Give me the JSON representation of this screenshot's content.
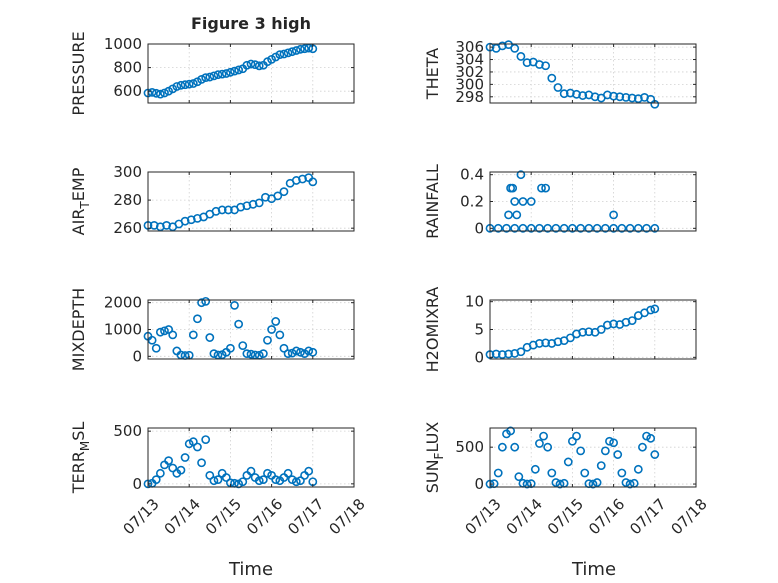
{
  "figure_title": "Figure 3 high",
  "xlabel": "Time",
  "colors": {
    "marker": "#0072BD",
    "axis": "#262626",
    "grid": "#d0d0d0"
  },
  "chart_data": [
    {
      "type": "scatter",
      "title": "Figure 3 high",
      "ylabel": "PRESSURE",
      "ylabel_parts": {
        "pre": "PRESSURE",
        "sub": "",
        "post": ""
      },
      "xlim": [
        "07/13",
        "07/18"
      ],
      "xticks": [
        "07/13",
        "07/14",
        "07/15",
        "07/16",
        "07/17",
        "07/18"
      ],
      "show_xtick_labels": false,
      "ylim": [
        500,
        1000
      ],
      "yticks": [
        600,
        800,
        1000
      ],
      "grid": true,
      "x": [
        0.0,
        0.1,
        0.2,
        0.3,
        0.4,
        0.5,
        0.6,
        0.7,
        0.8,
        0.9,
        1.0,
        1.1,
        1.2,
        1.3,
        1.4,
        1.5,
        1.6,
        1.7,
        1.8,
        1.9,
        2.0,
        2.1,
        2.2,
        2.3,
        2.4,
        2.5,
        2.6,
        2.7,
        2.8,
        2.9,
        3.0,
        3.1,
        3.2,
        3.3,
        3.4,
        3.5,
        3.6,
        3.7,
        3.8,
        3.9,
        4.0
      ],
      "y": [
        585,
        590,
        582,
        575,
        585,
        600,
        620,
        640,
        650,
        655,
        660,
        665,
        680,
        700,
        715,
        720,
        730,
        740,
        745,
        750,
        760,
        770,
        780,
        790,
        820,
        830,
        825,
        815,
        820,
        850,
        870,
        890,
        910,
        915,
        925,
        935,
        945,
        955,
        960,
        965,
        960
      ]
    },
    {
      "type": "scatter",
      "title": "",
      "ylabel": "THETA",
      "ylabel_parts": {
        "pre": "THETA",
        "sub": "",
        "post": ""
      },
      "xlim": [
        "07/13",
        "07/18"
      ],
      "xticks": [
        "07/13",
        "07/14",
        "07/15",
        "07/16",
        "07/17",
        "07/18"
      ],
      "show_xtick_labels": false,
      "ylim": [
        297,
        306.5
      ],
      "yticks": [
        298,
        300,
        302,
        304,
        306
      ],
      "grid": true,
      "x": [
        0.0,
        0.15,
        0.3,
        0.45,
        0.6,
        0.75,
        0.9,
        1.05,
        1.2,
        1.35,
        1.5,
        1.65,
        1.8,
        1.95,
        2.1,
        2.25,
        2.4,
        2.55,
        2.7,
        2.85,
        3.0,
        3.15,
        3.3,
        3.45,
        3.6,
        3.75,
        3.9,
        4.0
      ],
      "y": [
        306,
        305.8,
        306.2,
        306.4,
        305.8,
        304.5,
        303.5,
        303.6,
        303.2,
        303.0,
        301.0,
        299.5,
        298.5,
        298.6,
        298.4,
        298.2,
        298.3,
        298.0,
        297.8,
        298.3,
        298.1,
        298.0,
        297.9,
        297.8,
        297.7,
        297.9,
        297.6,
        296.8
      ]
    },
    {
      "type": "scatter",
      "title": "",
      "ylabel": "AIR_TEMP",
      "ylabel_parts": {
        "pre": "AIR",
        "sub": "T",
        "post": "EMP"
      },
      "xlim": [
        "07/13",
        "07/18"
      ],
      "xticks": [
        "07/13",
        "07/14",
        "07/15",
        "07/16",
        "07/17",
        "07/18"
      ],
      "show_xtick_labels": false,
      "ylim": [
        258,
        300
      ],
      "yticks": [
        260,
        280,
        300
      ],
      "grid": true,
      "x": [
        0.0,
        0.15,
        0.3,
        0.45,
        0.6,
        0.75,
        0.9,
        1.05,
        1.2,
        1.35,
        1.5,
        1.65,
        1.8,
        1.95,
        2.1,
        2.25,
        2.4,
        2.55,
        2.7,
        2.85,
        3.0,
        3.15,
        3.3,
        3.45,
        3.6,
        3.75,
        3.9,
        4.0
      ],
      "y": [
        262,
        262,
        261,
        262,
        261,
        263,
        265,
        266,
        267,
        268,
        270,
        272,
        273,
        273,
        273,
        275,
        276,
        277,
        278,
        282,
        281,
        283,
        286,
        292,
        294,
        295,
        296,
        293
      ]
    },
    {
      "type": "scatter",
      "title": "",
      "ylabel": "RAINFALL",
      "ylabel_parts": {
        "pre": "RAINFALL",
        "sub": "",
        "post": ""
      },
      "xlim": [
        "07/13",
        "07/18"
      ],
      "xticks": [
        "07/13",
        "07/14",
        "07/15",
        "07/16",
        "07/17",
        "07/18"
      ],
      "show_xtick_labels": false,
      "ylim": [
        -0.02,
        0.42
      ],
      "yticks": [
        0,
        0.2,
        0.4
      ],
      "grid": true,
      "x": [
        0.0,
        0.2,
        0.4,
        0.6,
        0.8,
        1.0,
        1.2,
        1.4,
        1.6,
        1.8,
        2.0,
        2.2,
        2.4,
        2.6,
        2.8,
        3.0,
        3.2,
        3.4,
        3.6,
        3.8,
        4.0,
        0.45,
        0.5,
        0.55,
        0.6,
        0.65,
        0.75,
        0.8,
        1.0,
        1.25,
        1.35,
        3.0
      ],
      "y": [
        0,
        0,
        0,
        0,
        0,
        0,
        0,
        0,
        0,
        0,
        0,
        0,
        0,
        0,
        0,
        0,
        0,
        0,
        0,
        0,
        0,
        0.1,
        0.3,
        0.3,
        0.2,
        0.1,
        0.4,
        0.2,
        0.2,
        0.3,
        0.3,
        0.1
      ]
    },
    {
      "type": "scatter",
      "title": "",
      "ylabel": "MIXDEPTH",
      "ylabel_parts": {
        "pre": "MIXDEPTH",
        "sub": "",
        "post": ""
      },
      "xlim": [
        "07/13",
        "07/18"
      ],
      "xticks": [
        "07/13",
        "07/14",
        "07/15",
        "07/16",
        "07/17",
        "07/18"
      ],
      "show_xtick_labels": false,
      "ylim": [
        -100,
        2100
      ],
      "yticks": [
        0,
        1000,
        2000
      ],
      "grid": true,
      "x": [
        0.0,
        0.1,
        0.2,
        0.3,
        0.4,
        0.5,
        0.6,
        0.7,
        0.8,
        0.9,
        1.0,
        1.1,
        1.2,
        1.3,
        1.4,
        1.5,
        1.6,
        1.7,
        1.8,
        1.9,
        2.0,
        2.1,
        2.2,
        2.3,
        2.4,
        2.5,
        2.6,
        2.7,
        2.8,
        2.9,
        3.0,
        3.1,
        3.2,
        3.3,
        3.4,
        3.5,
        3.6,
        3.7,
        3.8,
        3.9,
        4.0
      ],
      "y": [
        750,
        600,
        300,
        900,
        950,
        1000,
        800,
        200,
        50,
        30,
        40,
        800,
        1400,
        2000,
        2050,
        700,
        100,
        50,
        60,
        150,
        300,
        1900,
        1200,
        400,
        100,
        80,
        50,
        40,
        100,
        600,
        1000,
        1300,
        800,
        300,
        100,
        120,
        200,
        150,
        100,
        200,
        150
      ]
    },
    {
      "type": "scatter",
      "title": "",
      "ylabel": "H2OMIXRA",
      "ylabel_parts": {
        "pre": "H2OMIXRA",
        "sub": "",
        "post": ""
      },
      "xlim": [
        "07/13",
        "07/18"
      ],
      "xticks": [
        "07/13",
        "07/14",
        "07/15",
        "07/16",
        "07/17",
        "07/18"
      ],
      "show_xtick_labels": false,
      "ylim": [
        -0.3,
        10.3
      ],
      "yticks": [
        0,
        5,
        10
      ],
      "grid": true,
      "x": [
        0.0,
        0.15,
        0.3,
        0.45,
        0.6,
        0.75,
        0.9,
        1.05,
        1.2,
        1.35,
        1.5,
        1.65,
        1.8,
        1.95,
        2.1,
        2.25,
        2.4,
        2.55,
        2.7,
        2.85,
        3.0,
        3.15,
        3.3,
        3.45,
        3.6,
        3.75,
        3.9,
        4.0
      ],
      "y": [
        0.5,
        0.6,
        0.5,
        0.6,
        0.7,
        1.0,
        1.8,
        2.2,
        2.5,
        2.6,
        2.5,
        2.8,
        3.0,
        3.5,
        4.2,
        4.5,
        4.6,
        4.5,
        5.0,
        5.8,
        6.0,
        5.9,
        6.3,
        6.6,
        7.5,
        8.0,
        8.5,
        8.7
      ]
    },
    {
      "type": "scatter",
      "title": "",
      "ylabel": "TERR_MSL",
      "ylabel_parts": {
        "pre": "TERR",
        "sub": "M",
        "post": "SL"
      },
      "xlim": [
        "07/13",
        "07/18"
      ],
      "xticks": [
        "07/13",
        "07/14",
        "07/15",
        "07/16",
        "07/17",
        "07/18"
      ],
      "show_xtick_labels": true,
      "ylim": [
        -30,
        530
      ],
      "yticks": [
        0,
        500
      ],
      "grid": true,
      "x": [
        0.0,
        0.1,
        0.2,
        0.3,
        0.4,
        0.5,
        0.6,
        0.7,
        0.8,
        0.9,
        1.0,
        1.1,
        1.2,
        1.3,
        1.4,
        1.5,
        1.6,
        1.7,
        1.8,
        1.9,
        2.0,
        2.1,
        2.2,
        2.3,
        2.4,
        2.5,
        2.6,
        2.7,
        2.8,
        2.9,
        3.0,
        3.1,
        3.2,
        3.3,
        3.4,
        3.5,
        3.6,
        3.7,
        3.8,
        3.9,
        4.0
      ],
      "y": [
        0,
        5,
        40,
        100,
        180,
        220,
        150,
        100,
        130,
        250,
        380,
        400,
        350,
        200,
        420,
        80,
        30,
        40,
        100,
        60,
        10,
        5,
        0,
        20,
        80,
        120,
        60,
        30,
        40,
        100,
        80,
        40,
        30,
        60,
        100,
        40,
        20,
        30,
        80,
        120,
        20
      ]
    },
    {
      "type": "scatter",
      "title": "",
      "ylabel": "SUN_FLUX",
      "ylabel_parts": {
        "pre": "SUN",
        "sub": "F",
        "post": "LUX"
      },
      "xlim": [
        "07/13",
        "07/18"
      ],
      "xticks": [
        "07/13",
        "07/14",
        "07/15",
        "07/16",
        "07/17",
        "07/18"
      ],
      "show_xtick_labels": true,
      "ylim": [
        -40,
        760
      ],
      "yticks": [
        0,
        500
      ],
      "grid": true,
      "x": [
        0.0,
        0.1,
        0.2,
        0.3,
        0.4,
        0.5,
        0.6,
        0.7,
        0.8,
        0.9,
        1.0,
        1.1,
        1.2,
        1.3,
        1.4,
        1.5,
        1.6,
        1.7,
        1.8,
        1.9,
        2.0,
        2.1,
        2.2,
        2.3,
        2.4,
        2.5,
        2.6,
        2.7,
        2.8,
        2.9,
        3.0,
        3.1,
        3.2,
        3.3,
        3.4,
        3.5,
        3.6,
        3.7,
        3.8,
        3.9,
        4.0
      ],
      "y": [
        0,
        5,
        150,
        500,
        680,
        720,
        500,
        100,
        10,
        0,
        5,
        200,
        550,
        650,
        500,
        150,
        20,
        0,
        10,
        300,
        580,
        650,
        450,
        150,
        5,
        0,
        20,
        250,
        450,
        580,
        560,
        400,
        150,
        20,
        0,
        10,
        200,
        500,
        650,
        620,
        400
      ]
    }
  ]
}
